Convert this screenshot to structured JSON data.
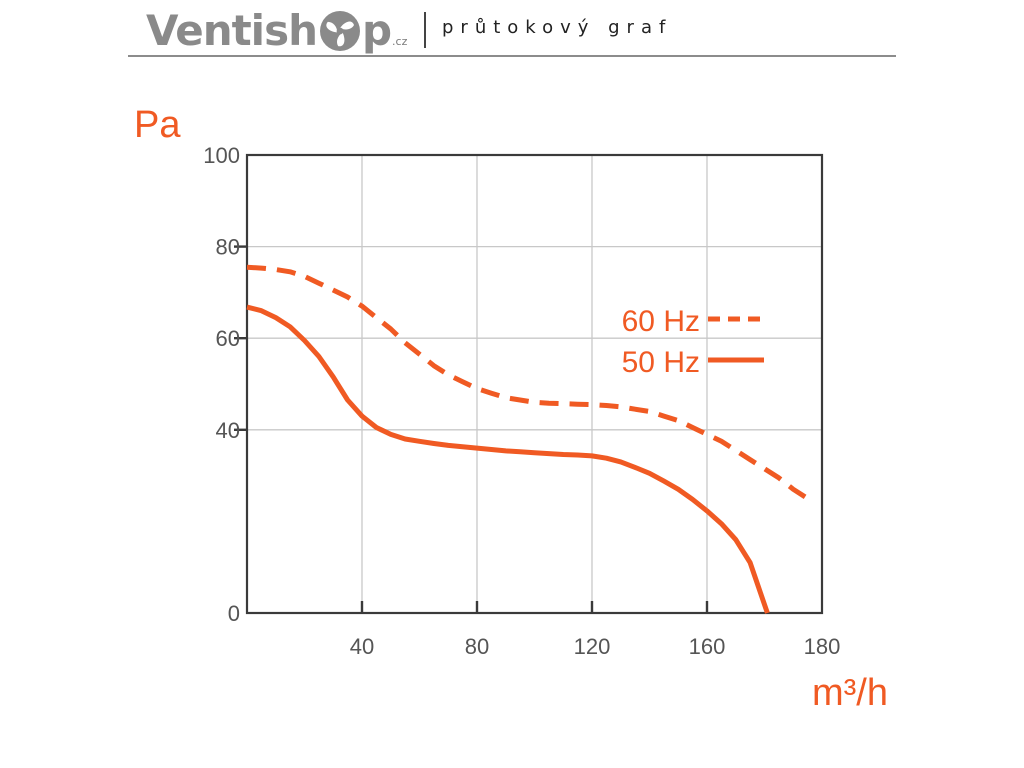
{
  "header": {
    "brand_part1": "Ventish",
    "brand_part2": "p",
    "brand_tld": ".cz",
    "brand_icon": "fan-icon",
    "subtitle": "průtokový graf",
    "brand_color": "#8a8a8a"
  },
  "chart_data": {
    "type": "line",
    "title": "",
    "xlabel": "m³/h",
    "ylabel": "Pa",
    "xlim": [
      0,
      200
    ],
    "ylim": [
      0,
      100
    ],
    "x_ticks": [
      40,
      80,
      120,
      160,
      180
    ],
    "y_ticks": [
      0,
      40,
      60,
      80,
      100
    ],
    "grid": true,
    "legend": "top-right",
    "series": [
      {
        "name": "60 Hz",
        "style": "dashed",
        "color": "#f05a23",
        "x": [
          0,
          5,
          10,
          15,
          20,
          25,
          30,
          35,
          40,
          45,
          50,
          55,
          60,
          65,
          70,
          75,
          80,
          85,
          90,
          95,
          100,
          105,
          110,
          115,
          120,
          125,
          130,
          135,
          140,
          145,
          150,
          155,
          160,
          165,
          170,
          175,
          180,
          185,
          190,
          195
        ],
        "y": [
          75.5,
          75.3,
          75,
          74.5,
          73.5,
          72,
          70.5,
          69,
          67,
          64.5,
          62,
          59,
          56.5,
          54,
          52,
          50.5,
          49,
          48,
          47,
          46.5,
          46,
          45.8,
          45.7,
          45.6,
          45.5,
          45.3,
          45,
          44.5,
          44,
          43,
          42,
          40.5,
          39,
          37.5,
          35.5,
          33.5,
          31.5,
          29.5,
          27,
          25
        ]
      },
      {
        "name": "50 Hz",
        "style": "solid",
        "color": "#f05a23",
        "x": [
          0,
          5,
          10,
          15,
          20,
          25,
          30,
          35,
          40,
          45,
          50,
          55,
          60,
          65,
          70,
          75,
          80,
          85,
          90,
          95,
          100,
          105,
          110,
          115,
          120,
          125,
          130,
          135,
          140,
          145,
          150,
          155,
          160,
          165,
          170,
          175,
          181
        ],
        "y": [
          66.8,
          66,
          64.5,
          62.5,
          59.5,
          56,
          51.5,
          46.5,
          43,
          40.5,
          39,
          38,
          37.5,
          37,
          36.6,
          36.3,
          36,
          35.7,
          35.4,
          35.2,
          35,
          34.8,
          34.6,
          34.5,
          34.3,
          33.8,
          33,
          31.8,
          30.5,
          28.8,
          27,
          24.8,
          22.3,
          19.5,
          16,
          11,
          0
        ]
      }
    ]
  }
}
